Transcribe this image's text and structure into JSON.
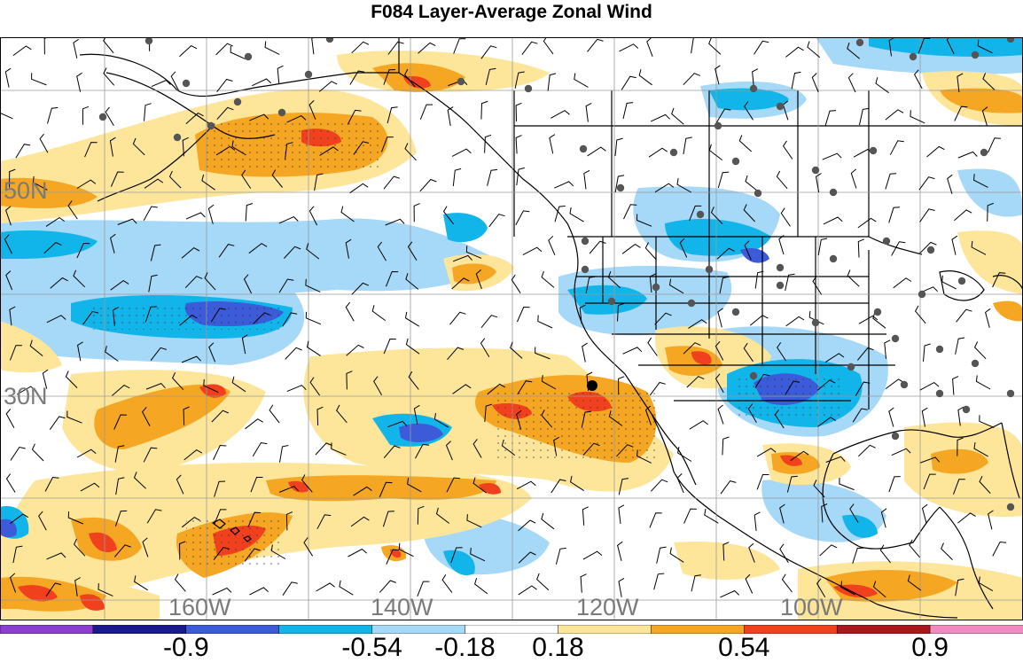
{
  "title": "F084 Layer-Average Zonal Wind",
  "lat_labels": [
    "50N",
    "30N"
  ],
  "lon_labels": [
    "160W",
    "140W",
    "120W",
    "100W"
  ],
  "colorbar": {
    "colors": [
      "#8a3fd1",
      "#1a1a8c",
      "#3b5bd9",
      "#12b5ea",
      "#a6d8f7",
      "#ffffff",
      "#fde69a",
      "#f5a623",
      "#f0401e",
      "#a8181c",
      "#f08cc0"
    ],
    "tick_labels": [
      "-0.9",
      "-0.54",
      "-0.18",
      "0.18",
      "0.54",
      "0.9"
    ]
  },
  "palette": {
    "land_outline": "#000000",
    "grid": "#9a9a9a",
    "station_dot": "#555555"
  }
}
